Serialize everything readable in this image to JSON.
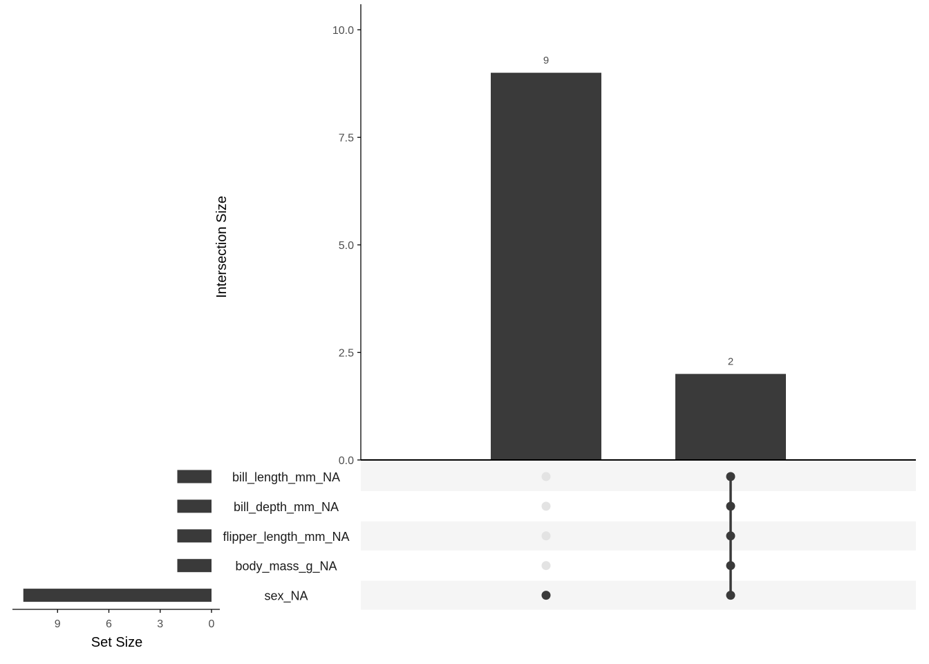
{
  "chart_data": {
    "type": "upset",
    "colors": {
      "bar": "#3a3a3a",
      "dot_on": "#3a3a3a",
      "dot_off": "#e3e3e3",
      "stripe": "#f5f5f5",
      "axis": "#000000"
    },
    "intersections": {
      "ylabel": "Intersection Size",
      "ylim": [
        0,
        10.4
      ],
      "yticks": [
        "0.0",
        "2.5",
        "5.0",
        "7.5",
        "10.0"
      ],
      "ytick_values": [
        0,
        2.5,
        5,
        7.5,
        10
      ],
      "values": [
        9,
        2
      ],
      "labels": [
        "9",
        "2"
      ],
      "members": [
        [
          false,
          false,
          false,
          false,
          true
        ],
        [
          true,
          true,
          true,
          true,
          true
        ]
      ]
    },
    "sets": {
      "names": [
        "bill_length_mm_NA",
        "bill_depth_mm_NA",
        "flipper_length_mm_NA",
        "body_mass_g_NA",
        "sex_NA"
      ],
      "sizes": [
        2,
        2,
        2,
        2,
        11
      ],
      "xlabel": "Set Size",
      "xticks": [
        "9",
        "6",
        "3",
        "0"
      ],
      "xtick_values": [
        9,
        6,
        3,
        0
      ]
    }
  }
}
